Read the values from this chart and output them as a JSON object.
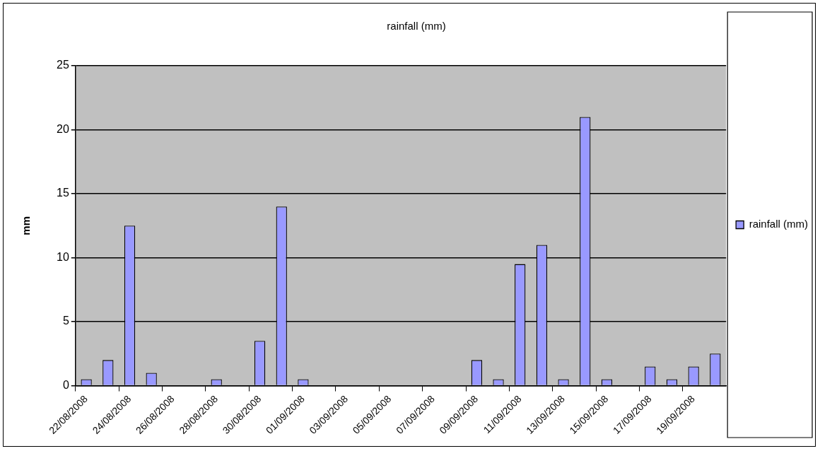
{
  "chart_data": {
    "type": "bar",
    "title": "rainfall (mm)",
    "ylabel": "mm",
    "categories": [
      "22/08/2008",
      null,
      "24/08/2008",
      null,
      "26/08/2008",
      null,
      "28/08/2008",
      null,
      "30/08/2008",
      null,
      "01/09/2008",
      null,
      "03/09/2008",
      null,
      "05/09/2008",
      null,
      "07/09/2008",
      null,
      "09/09/2008",
      null,
      "11/09/2008",
      null,
      "13/09/2008",
      null,
      "15/09/2008",
      null,
      "17/09/2008",
      null,
      "19/09/2008",
      null
    ],
    "series": [
      {
        "name": "rainfall (mm)",
        "color": "#9999ff",
        "values": [
          0.5,
          2,
          12.5,
          1,
          0,
          0,
          0.5,
          0,
          3.5,
          14,
          0.5,
          0,
          0,
          0,
          0,
          0,
          0,
          0,
          2,
          0.5,
          9.5,
          11,
          0.5,
          21,
          0.5,
          0,
          1.5,
          0.5,
          1.5,
          2.5
        ]
      }
    ],
    "ylim": [
      0,
      25
    ],
    "yticks": [
      0,
      5,
      10,
      15,
      20,
      25
    ],
    "grid": "y",
    "legend": "right"
  }
}
